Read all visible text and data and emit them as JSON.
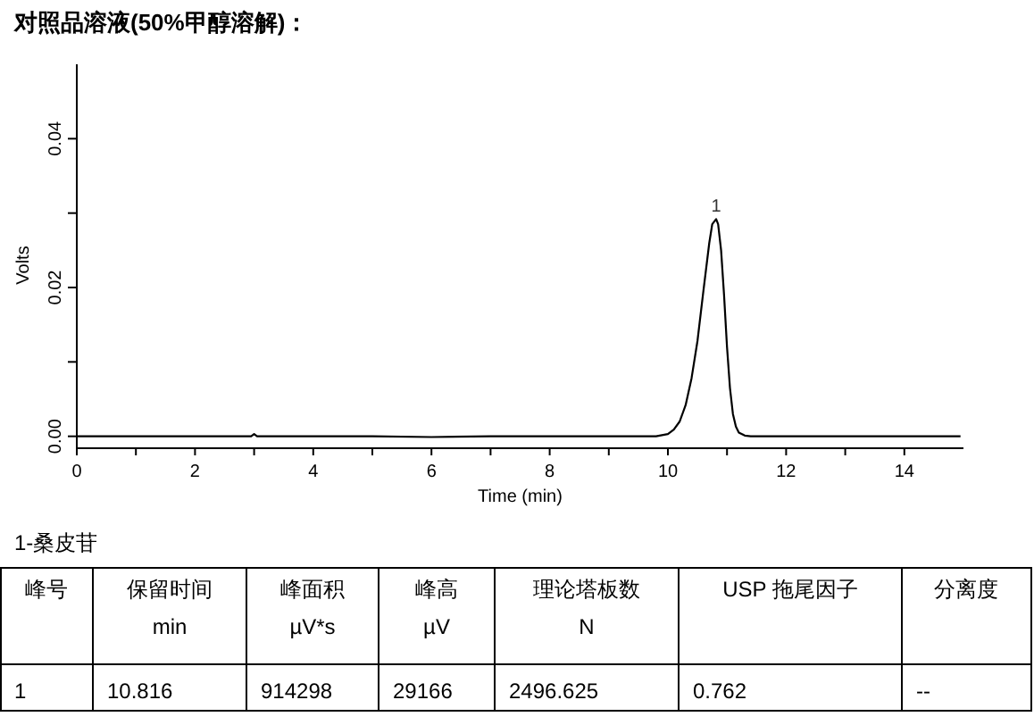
{
  "chart_data": {
    "type": "line",
    "title": "对照品溶液(50%甲醇溶解)：",
    "xlabel": "Time (min)",
    "ylabel": "Volts",
    "x": [
      0,
      1,
      2,
      2.95,
      3.0,
      3.05,
      4,
      5,
      6,
      7,
      8,
      9,
      9.8,
      10.0,
      10.1,
      10.2,
      10.3,
      10.4,
      10.5,
      10.6,
      10.7,
      10.75,
      10.816,
      10.85,
      10.9,
      10.95,
      11.0,
      11.05,
      11.1,
      11.15,
      11.2,
      11.3,
      11.4,
      12,
      13,
      14,
      14.95
    ],
    "series": [
      {
        "color": "#000000",
        "values": [
          0,
          0,
          0,
          0,
          0.0003,
          0,
          0,
          0,
          -0.0001,
          0,
          0,
          0,
          0,
          0.0003,
          0.0009,
          0.002,
          0.0042,
          0.0078,
          0.0128,
          0.0195,
          0.026,
          0.0285,
          0.0292,
          0.0285,
          0.025,
          0.019,
          0.012,
          0.0065,
          0.003,
          0.0013,
          0.0005,
          0.0001,
          0,
          0,
          0,
          0,
          0
        ]
      }
    ],
    "xlim": [
      0,
      15
    ],
    "ylim": [
      -0.0016,
      0.05
    ],
    "xticks": [
      0,
      {
        "value": 1,
        "label": null
      },
      2,
      {
        "value": 3,
        "label": null
      },
      4,
      {
        "value": 5,
        "label": null
      },
      6,
      {
        "value": 7,
        "label": null
      },
      8,
      {
        "value": 9,
        "label": null
      },
      10,
      {
        "value": 11,
        "label": null
      },
      12,
      {
        "value": 13,
        "label": null
      },
      14
    ],
    "yticks": [
      {
        "value": 0,
        "label": "0.00"
      },
      {
        "value": 0.01,
        "label": null
      },
      {
        "value": 0.02,
        "label": "0.02"
      },
      {
        "value": 0.03,
        "label": null
      },
      {
        "value": 0.04,
        "label": "0.04"
      }
    ],
    "grid": false,
    "marker": "none",
    "line_style": "solid",
    "annotations": [
      {
        "text": "1",
        "x": 10.816,
        "y": 0.0292
      },
      "1-桑皮苷",
      "峰号",
      "保留时间",
      "峰面积",
      "峰高",
      "理论塔板数",
      "USP 拖尾因子",
      "分离度",
      "min",
      "µV*s",
      "µV",
      "N",
      "1",
      "10.816",
      "914298",
      "29166",
      "2496.625",
      "0.762",
      "--"
    ]
  }
}
